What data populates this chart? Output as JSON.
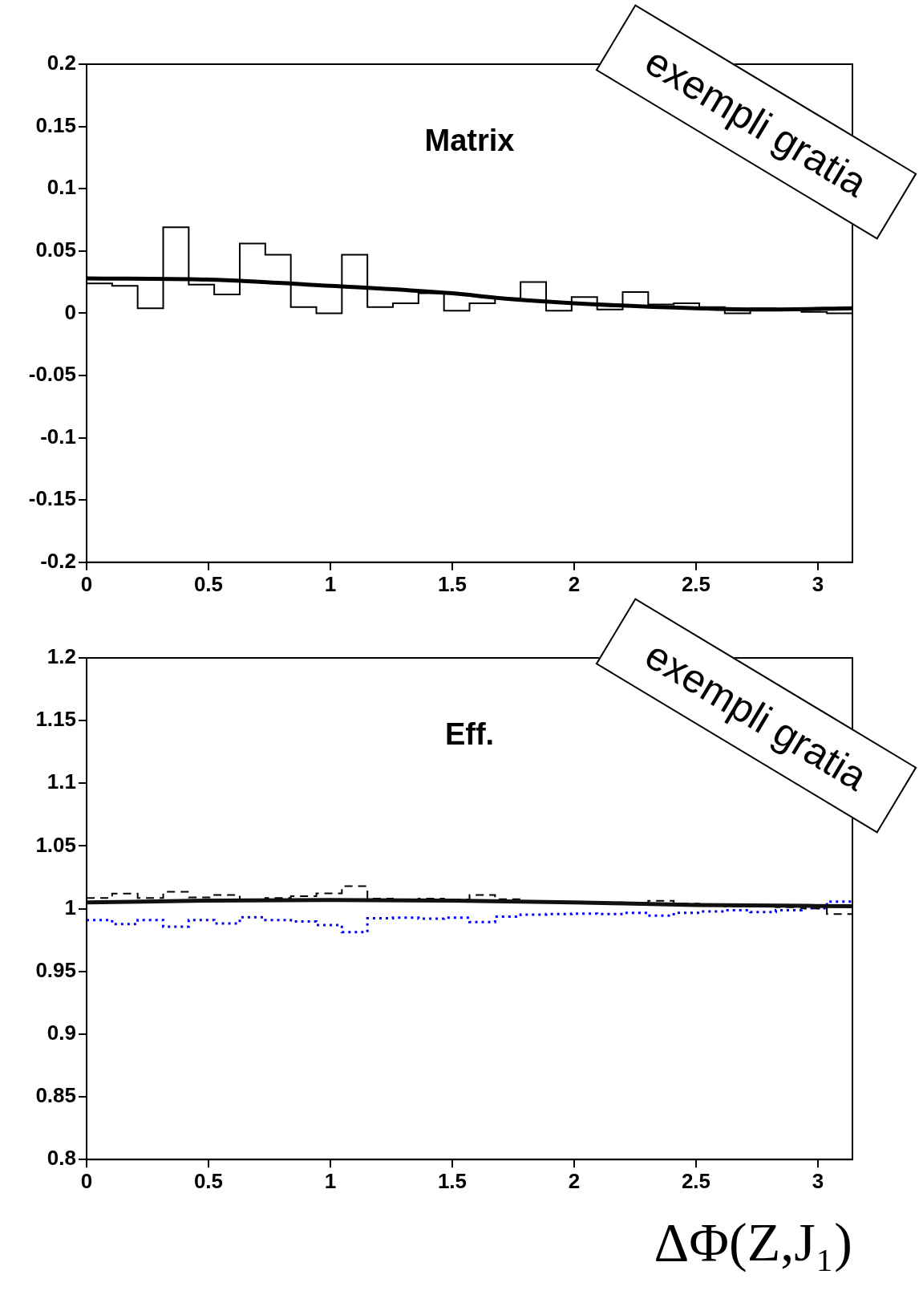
{
  "chart_data": [
    {
      "type": "histogram",
      "title": "Matrix",
      "annotations": [
        "exempli gratia"
      ],
      "bins": [
        0,
        0.1047,
        0.2094,
        0.3142,
        0.4189,
        0.5236,
        0.6283,
        0.733,
        0.8378,
        0.9425,
        1.0472,
        1.1519,
        1.2566,
        1.3614,
        1.4661,
        1.5708,
        1.6755,
        1.7802,
        1.885,
        1.9897,
        2.0944,
        2.1991,
        2.3038,
        2.4086,
        2.5133,
        2.618,
        2.7227,
        2.8274,
        2.9322,
        3.0369,
        3.1416
      ],
      "series": [
        {
          "color": "#000000",
          "values": [
            0.024,
            0.022,
            0.004,
            0.069,
            0.023,
            0.015,
            0.056,
            0.047,
            0.005,
            0.0,
            0.047,
            0.005,
            0.008,
            0.016,
            0.002,
            0.008,
            0.012,
            0.025,
            0.002,
            0.013,
            0.003,
            0.017,
            0.007,
            0.008,
            0.005,
            0.0,
            0.004,
            0.003,
            0.001,
            0.0
          ]
        },
        {
          "type": "line",
          "color": "#000000",
          "x": [
            0,
            0.5,
            1,
            1.5,
            1.7,
            2,
            2.5,
            2.8,
            3.1416
          ],
          "values": [
            0.028,
            0.027,
            0.022,
            0.016,
            0.012,
            0.008,
            0.004,
            0.003,
            0.004
          ]
        }
      ],
      "xlim": [
        0,
        3.1416
      ],
      "xticks": [
        0,
        0.5,
        1,
        1.5,
        2,
        2.5,
        3
      ],
      "ylim": [
        -0.2,
        0.2
      ],
      "yticks": [
        -0.2,
        -0.15,
        -0.1,
        -0.05,
        0,
        0.05,
        0.1,
        0.15,
        0.2
      ],
      "grid": false,
      "legend": false
    },
    {
      "type": "histogram",
      "title": "Eff.",
      "xlabel": "ΔΦ(Z,J₁)",
      "annotations": [
        "exempli gratia"
      ],
      "bins": [
        0,
        0.1047,
        0.2094,
        0.3142,
        0.4189,
        0.5236,
        0.6283,
        0.733,
        0.8378,
        0.9425,
        1.0472,
        1.1519,
        1.2566,
        1.3614,
        1.4661,
        1.5708,
        1.6755,
        1.7802,
        1.885,
        1.9897,
        2.0944,
        2.1991,
        2.3038,
        2.4086,
        2.5133,
        2.618,
        2.7227,
        2.8274,
        2.9322,
        3.0369,
        3.1416
      ],
      "series": [
        {
          "color": "#000000",
          "line_style": "dashed",
          "values": [
            1.0085,
            1.012,
            1.0085,
            1.0135,
            1.009,
            1.011,
            1.007,
            1.0085,
            1.01,
            1.0123,
            1.018,
            1.008,
            1.0075,
            1.008,
            1.0075,
            1.011,
            1.0076,
            1.006,
            1.0055,
            1.005,
            1.005,
            1.0045,
            1.0063,
            1.004,
            1.003,
            1.0018,
            1.0018,
            1.0012,
            1.0002,
            0.9957
          ]
        },
        {
          "color": "#0000ff",
          "line_style": "dotted",
          "values": [
            0.991,
            0.9877,
            0.991,
            0.9856,
            0.991,
            0.9883,
            0.9932,
            0.991,
            0.9898,
            0.9869,
            0.9813,
            0.9924,
            0.9928,
            0.992,
            0.9928,
            0.9894,
            0.9937,
            0.9953,
            0.9957,
            0.9961,
            0.9957,
            0.9967,
            0.9945,
            0.9967,
            0.9978,
            0.9988,
            0.9973,
            0.9988,
            1.0004,
            1.0057
          ]
        },
        {
          "type": "line",
          "color": "#111111",
          "x": [
            0,
            0.5,
            1,
            1.5,
            2,
            2.5,
            3.1416
          ],
          "values": [
            1.005,
            1.0065,
            1.007,
            1.0065,
            1.005,
            1.003,
            1.002
          ]
        }
      ],
      "xlim": [
        0,
        3.1416
      ],
      "xticks": [
        0,
        0.5,
        1,
        1.5,
        2,
        2.5,
        3
      ],
      "ylim": [
        0.8,
        1.2
      ],
      "yticks": [
        0.8,
        0.85,
        0.9,
        0.95,
        1,
        1.05,
        1.1,
        1.15,
        1.2
      ],
      "grid": false,
      "legend": false
    }
  ]
}
